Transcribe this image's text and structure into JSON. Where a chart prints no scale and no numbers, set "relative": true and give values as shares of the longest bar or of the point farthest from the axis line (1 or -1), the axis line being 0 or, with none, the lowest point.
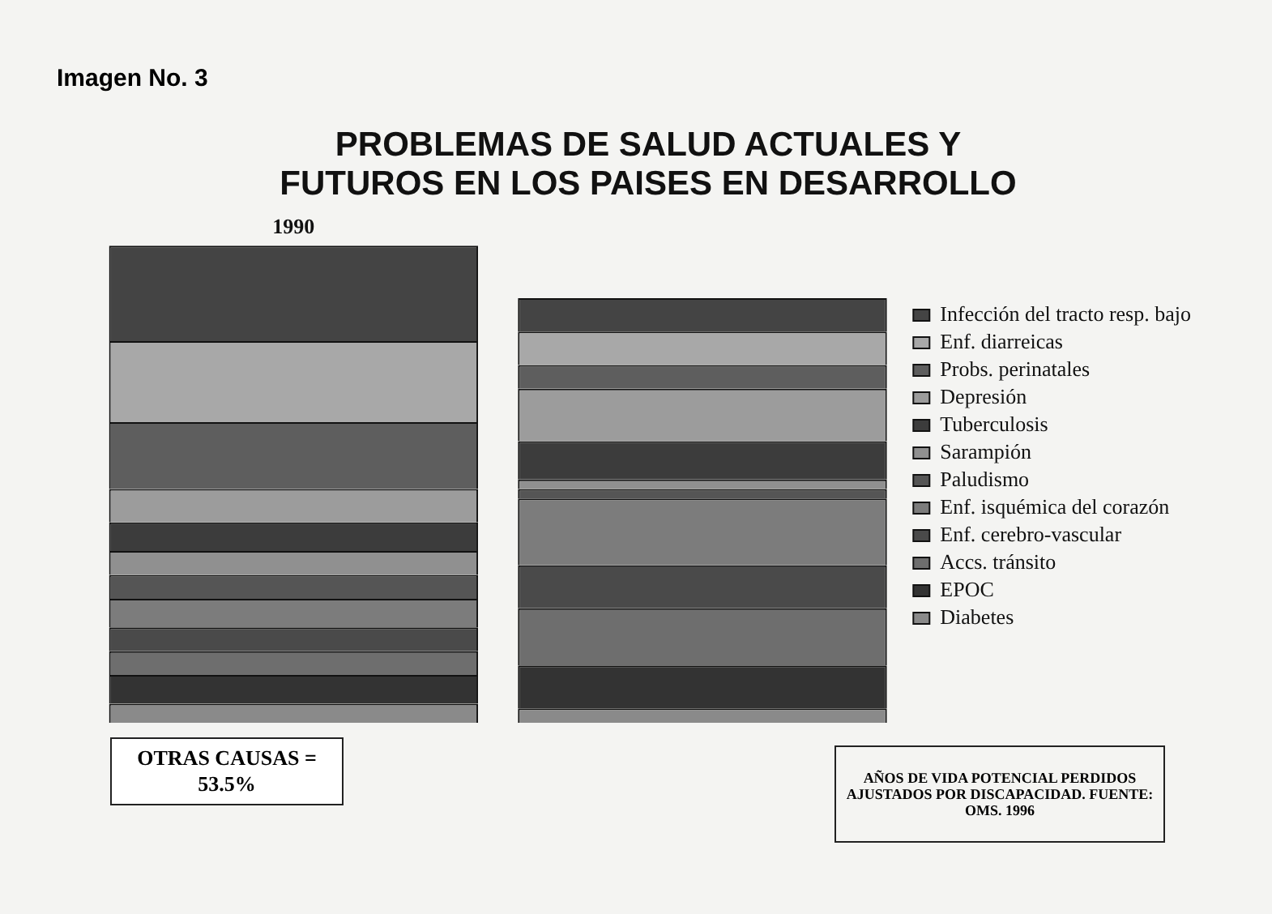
{
  "chart_data": {
    "type": "bar",
    "title": "PROBLEMAS DE SALUD ACTUALES Y FUTUROS EN LOS PAISES EN DESARROLLO",
    "categories": [
      "1990",
      null
    ],
    "stacked": true,
    "relative": true,
    "legend": "right",
    "grid": false,
    "series": [
      {
        "name": "Diabetes",
        "color": "#8a8a8a",
        "values": [
          0.04,
          0.03
        ]
      },
      {
        "name": "EPOC",
        "color": "#333333",
        "values": [
          0.06,
          0.09
        ]
      },
      {
        "name": "Accs. tránsito",
        "color": "#6e6e6e",
        "values": [
          0.05,
          0.12
        ]
      },
      {
        "name": "Enf. cerebro-vascular",
        "color": "#4a4a4a",
        "values": [
          0.05,
          0.09
        ]
      },
      {
        "name": "Enf. isquémica del corazón",
        "color": "#7c7c7c",
        "values": [
          0.06,
          0.14
        ]
      },
      {
        "name": "Paludismo",
        "color": "#555555",
        "values": [
          0.05,
          0.02
        ]
      },
      {
        "name": "Sarampión",
        "color": "#909090",
        "values": [
          0.05,
          0.02
        ]
      },
      {
        "name": "Tuberculosis",
        "color": "#3c3c3c",
        "values": [
          0.06,
          0.08
        ]
      },
      {
        "name": "Depresión",
        "color": "#9c9c9c",
        "values": [
          0.07,
          0.11
        ]
      },
      {
        "name": "Probs. perinatales",
        "color": "#5e5e5e",
        "values": [
          0.14,
          0.05
        ]
      },
      {
        "name": "Enf. diarreicas",
        "color": "#a8a8a8",
        "values": [
          0.17,
          0.07
        ]
      },
      {
        "name": "Infección del tracto resp. bajo",
        "color": "#444444",
        "values": [
          0.2,
          0.07
        ]
      }
    ],
    "annotations": [
      "Imagen No. 3",
      "OTRAS CAUSAS = 53.5%",
      "AÑOS DE VIDA POTENCIAL PERDIDOS AJUSTADOS POR DISCAPACIDAD. FUENTE: OMS. 1996"
    ]
  }
}
